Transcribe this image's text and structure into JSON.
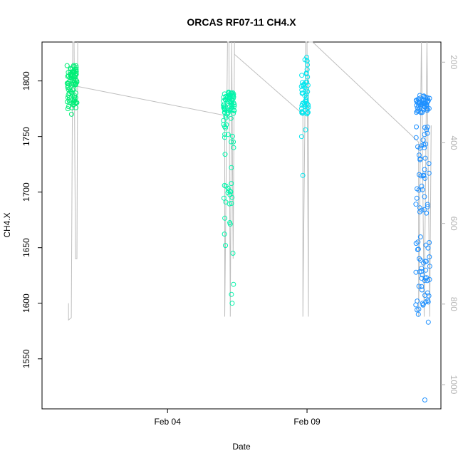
{
  "chart_data": {
    "type": "scatter",
    "title": "ORCAS RF07-11 CH4.X",
    "xlabel": "Date",
    "ylabel": "CH4.X",
    "x_ticks": [
      {
        "label": "Feb 04",
        "value": 4.0
      },
      {
        "label": "Feb 09",
        "value": 9.0
      }
    ],
    "xlim": [
      -0.5,
      13.8
    ],
    "ylim": [
      1505,
      1835
    ],
    "y_ticks": [
      1550,
      1600,
      1650,
      1700,
      1750,
      1800
    ],
    "y2_ticks": [
      200,
      400,
      600,
      800,
      1000
    ],
    "y2lim": [
      1060,
      150
    ],
    "grid": false,
    "legend": "none",
    "colors": {
      "rf07": "#00ee76",
      "rf08": "#00f5aa",
      "rf09": "#00e5ee",
      "rf11": "#1e90ff",
      "pressure_line": "#bebebe"
    },
    "flights": [
      {
        "x0": 0.4,
        "x1": 0.75,
        "color_key": "rf07",
        "clusters": [
          [
            1800,
            1815,
            40
          ],
          [
            1775,
            1800,
            50
          ]
        ],
        "outliers": [
          1770
        ]
      },
      {
        "x0": 6.0,
        "x1": 6.4,
        "color_key": "rf08",
        "clusters": [
          [
            1770,
            1790,
            60
          ],
          [
            1740,
            1770,
            15
          ],
          [
            1660,
            1710,
            18
          ]
        ],
        "outliers": [
          1600,
          1608,
          1617,
          1645,
          1652,
          1722,
          1734
        ]
      },
      {
        "x0": 8.8,
        "x1": 9.05,
        "color_key": "rf09",
        "clusters": [
          [
            1770,
            1800,
            40
          ],
          [
            1800,
            1822,
            10
          ]
        ],
        "outliers": [
          1715,
          1750,
          1756
        ]
      },
      {
        "x0": 12.9,
        "x1": 13.4,
        "color_key": "rf11",
        "clusters": [
          [
            1770,
            1787,
            50
          ],
          [
            1680,
            1760,
            40
          ],
          [
            1590,
            1660,
            40
          ]
        ],
        "outliers": [
          1513,
          1583,
          1590,
          1600,
          1612,
          1623
        ]
      }
    ],
    "pressure_segments": [
      {
        "points": [
          [
            0.45,
            1600
          ],
          [
            0.45,
            1585
          ],
          [
            0.55,
            1587
          ],
          [
            0.6,
            1835
          ],
          [
            0.65,
            1835
          ],
          [
            0.7,
            1640
          ],
          [
            0.75,
            1640
          ],
          [
            0.78,
            1835
          ]
        ]
      },
      {
        "points": [
          [
            0.78,
            1795
          ],
          [
            6.05,
            1769
          ],
          [
            6.05,
            1588
          ],
          [
            6.15,
            1835
          ],
          [
            6.2,
            1835
          ],
          [
            6.25,
            1588
          ],
          [
            6.3,
            1835
          ],
          [
            6.35,
            1640
          ],
          [
            6.4,
            1835
          ],
          [
            6.4,
            1824
          ]
        ]
      },
      {
        "points": [
          [
            6.4,
            1824
          ],
          [
            8.85,
            1770
          ],
          [
            8.85,
            1588
          ],
          [
            8.95,
            1835
          ],
          [
            9.0,
            1835
          ],
          [
            9.05,
            1588
          ],
          [
            9.05,
            1820
          ]
        ]
      },
      {
        "points": [
          [
            9.05,
            1835
          ],
          [
            9.2,
            1835
          ],
          [
            13.0,
            1745
          ],
          [
            13.0,
            1588
          ],
          [
            13.1,
            1835
          ],
          [
            13.2,
            1588
          ],
          [
            13.3,
            1835
          ],
          [
            13.4,
            1588
          ],
          [
            13.45,
            1760
          ]
        ]
      }
    ]
  }
}
